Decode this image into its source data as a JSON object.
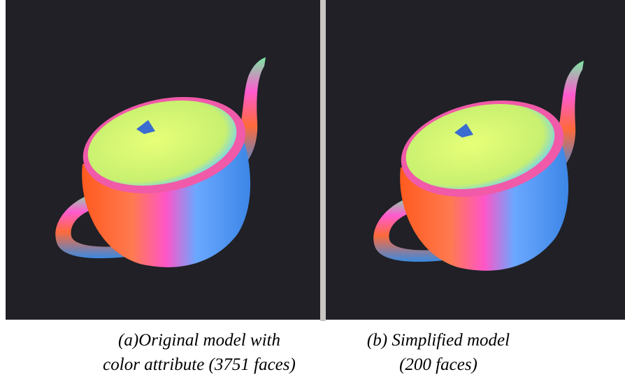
{
  "figures": [
    {
      "caption_lines": [
        "(a)Original model with",
        "color attribute (3751 faces)"
      ]
    },
    {
      "caption_lines": [
        "(b) Simplified model",
        "(200 faces)"
      ]
    }
  ]
}
